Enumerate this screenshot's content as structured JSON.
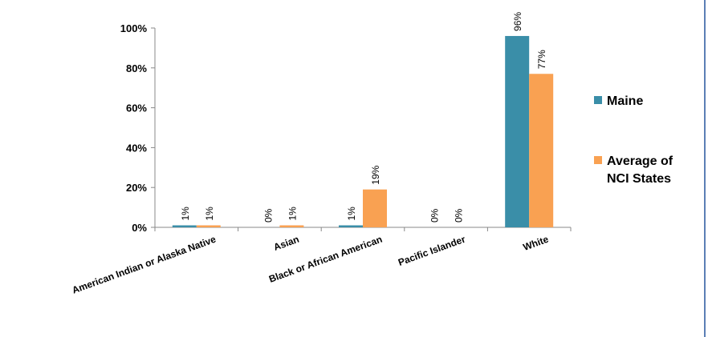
{
  "chart_data": {
    "type": "bar",
    "title": "",
    "xlabel": "",
    "ylabel": "",
    "ylim": [
      0,
      100
    ],
    "y_ticks": [
      "0%",
      "20%",
      "40%",
      "60%",
      "80%",
      "100%"
    ],
    "categories": [
      "American Indian or Alaska Native",
      "Asian",
      "Black or African American",
      "Pacific Islander",
      "White"
    ],
    "series": [
      {
        "name": "Maine",
        "color": "#3A8EA8",
        "values": [
          1,
          0,
          1,
          0,
          96
        ],
        "labels": [
          "1%",
          "0%",
          "1%",
          "0%",
          "96%"
        ]
      },
      {
        "name": "Average of NCI States",
        "color": "#F9A152",
        "values": [
          1,
          1,
          19,
          0,
          77
        ],
        "labels": [
          "1%",
          "1%",
          "19%",
          "0%",
          "77%"
        ]
      }
    ],
    "legend": {
      "position": "right",
      "items": [
        {
          "lines": [
            "Maine"
          ],
          "color": "#3A8EA8"
        },
        {
          "lines": [
            "Average of",
            "NCI States"
          ],
          "color": "#F9A152"
        }
      ]
    },
    "grid": false
  }
}
